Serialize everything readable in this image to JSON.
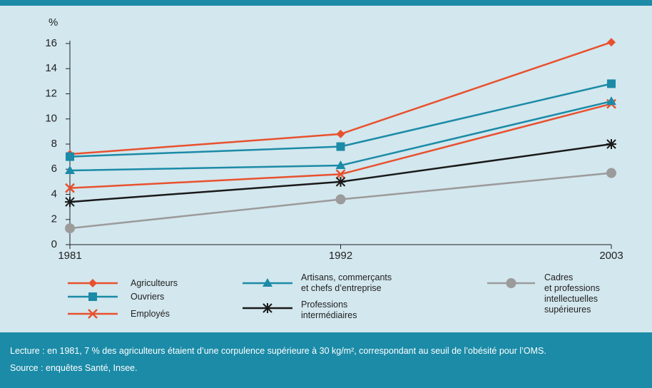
{
  "chart_data": {
    "type": "line",
    "y_unit": "%",
    "x": [
      1981,
      1992,
      2003
    ],
    "xlim": [
      1981,
      2003
    ],
    "xticks": [
      1981,
      1992,
      2003
    ],
    "ylim": [
      0,
      16
    ],
    "yticks": [
      0,
      2,
      4,
      6,
      8,
      10,
      12,
      14,
      16
    ],
    "series": [
      {
        "name": "Agriculteurs",
        "color": "#e8512e",
        "marker": "diamond",
        "values": [
          7.2,
          8.8,
          16.1
        ]
      },
      {
        "name": "Ouvriers",
        "color": "#1b8ba7",
        "marker": "square",
        "values": [
          7.0,
          7.8,
          12.8
        ]
      },
      {
        "name": "Employés",
        "color": "#e8512e",
        "marker": "x",
        "values": [
          4.5,
          5.6,
          11.2
        ]
      },
      {
        "name": "Artisans, commerçants\net chefs d’entreprise",
        "color": "#1b8ba7",
        "marker": "triangle",
        "values": [
          5.9,
          6.3,
          11.4
        ]
      },
      {
        "name": "Professions\nintermédiaires",
        "color": "#1a1a1a",
        "marker": "asterisk",
        "values": [
          3.4,
          5.0,
          8.0
        ]
      },
      {
        "name": "Cadres\net professions\nintellectuelles\nsupérieures",
        "color": "#9b9b9b",
        "marker": "circle",
        "values": [
          1.3,
          3.6,
          5.7
        ]
      }
    ],
    "notes": [
      "Lecture : en 1981, 7 % des agriculteurs étaient d’une corpulence supérieure à 30 kg/m², correspondant au seuil de l’obésité pour l’OMS.",
      "Source : enquêtes Santé, Insee."
    ]
  }
}
